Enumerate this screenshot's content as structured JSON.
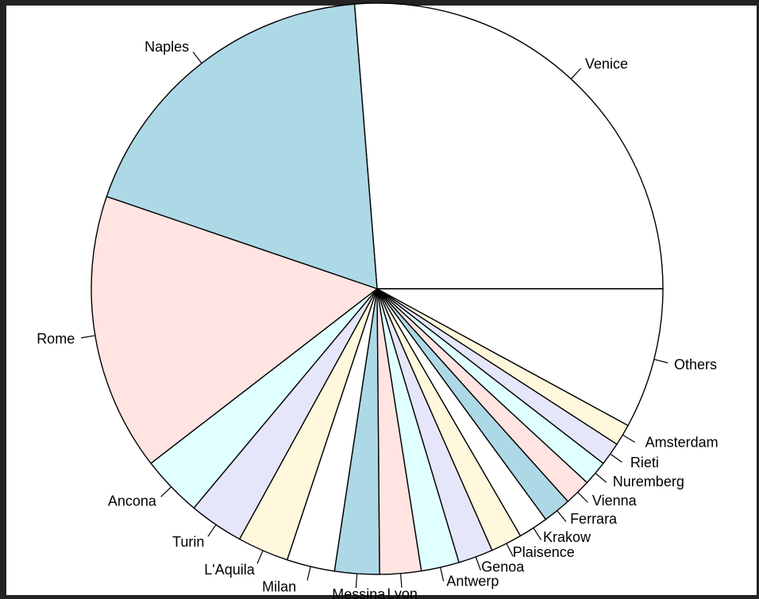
{
  "chart_data": {
    "type": "pie",
    "title": "",
    "clockwise": false,
    "start_angle_deg": 0,
    "slices": [
      {
        "label": "Venice",
        "value": 28.1,
        "color": "#ffffff"
      },
      {
        "label": "Naples",
        "value": 19.8,
        "color": "#add8e6"
      },
      {
        "label": "Rome",
        "value": 16.8,
        "color": "#ffe4e1"
      },
      {
        "label": "Ancona",
        "value": 3.7,
        "color": "#e0ffff"
      },
      {
        "label": "Turin",
        "value": 3.3,
        "color": "#e6e6fa"
      },
      {
        "label": "L'Aquila",
        "value": 3.1,
        "color": "#fff8dc"
      },
      {
        "label": "Milan",
        "value": 2.9,
        "color": "#ffffff"
      },
      {
        "label": "Messina",
        "value": 2.7,
        "color": "#add8e6"
      },
      {
        "label": "Lyon",
        "value": 2.5,
        "color": "#ffe4e1"
      },
      {
        "label": "Antwerp",
        "value": 2.3,
        "color": "#e0ffff"
      },
      {
        "label": "Genoa",
        "value": 2.1,
        "color": "#e6e6fa"
      },
      {
        "label": "Plaisence",
        "value": 1.9,
        "color": "#fff8dc"
      },
      {
        "label": "Krakow",
        "value": 1.8,
        "color": "#ffffff"
      },
      {
        "label": "Ferrara",
        "value": 1.7,
        "color": "#add8e6"
      },
      {
        "label": "Vienna",
        "value": 1.6,
        "color": "#ffe4e1"
      },
      {
        "label": "Nuremberg",
        "value": 1.5,
        "color": "#e0ffff"
      },
      {
        "label": "Rieti",
        "value": 1.4,
        "color": "#e6e6fa"
      },
      {
        "label": "Amsterdam",
        "value": 1.3,
        "color": "#fff8dc"
      },
      {
        "label": "Others",
        "value": 8.5,
        "color": "#ffffff"
      }
    ]
  }
}
